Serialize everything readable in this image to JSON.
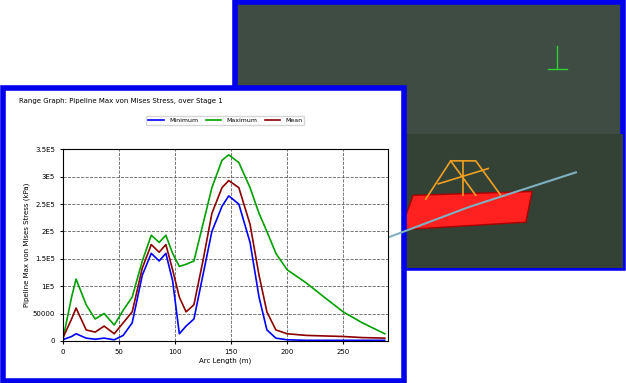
{
  "chart_data": {
    "type": "line",
    "title": "Range Graph: Pipeline Max von Mises Stress, over Stage 1",
    "x_label": "Arc Length (m)",
    "y_label": "Pipeline Max von Mises Stress (kPa)",
    "x": [
      0,
      8,
      12,
      21,
      29,
      37,
      46,
      54,
      62,
      71,
      79,
      86,
      92,
      98,
      104,
      110,
      117,
      125,
      133,
      142,
      148,
      157,
      167,
      175,
      182,
      190,
      200,
      217,
      233,
      250,
      267,
      287
    ],
    "series": [
      {
        "name": "Minimum",
        "color": "#0000ff",
        "values": [
          2000,
          8000,
          13000,
          5000,
          3000,
          5000,
          2000,
          10000,
          33000,
          120000,
          160000,
          146000,
          160000,
          110000,
          13000,
          27000,
          40000,
          120000,
          200000,
          246000,
          265000,
          250000,
          180000,
          80000,
          20000,
          5000,
          2000,
          1000,
          1000,
          1000,
          1000,
          1000
        ]
      },
      {
        "name": "Maximum",
        "color": "#00a000",
        "values": [
          0,
          80000,
          113000,
          66000,
          40000,
          50000,
          29000,
          56000,
          80000,
          146000,
          193000,
          180000,
          193000,
          160000,
          136000,
          140000,
          146000,
          213000,
          280000,
          330000,
          340000,
          326000,
          280000,
          233000,
          200000,
          160000,
          130000,
          106000,
          80000,
          53000,
          33000,
          13000
        ]
      },
      {
        "name": "Mean",
        "color": "#8b0000",
        "values": [
          4000,
          40000,
          60000,
          20000,
          16000,
          27000,
          13000,
          33000,
          53000,
          133000,
          176000,
          162000,
          176000,
          130000,
          80000,
          53000,
          66000,
          146000,
          233000,
          280000,
          293000,
          280000,
          213000,
          120000,
          53000,
          20000,
          13000,
          10000,
          9000,
          8000,
          6000,
          5000
        ]
      }
    ],
    "xlim": [
      0,
      290
    ],
    "xticks": [
      0,
      50,
      100,
      150,
      200,
      250
    ],
    "ylim": [
      0,
      350000
    ],
    "yticks": [
      0,
      50000,
      {
        "value": 100000,
        "label": "1E5"
      },
      {
        "value": 150000,
        "label": "1.5E5"
      },
      {
        "value": 200000,
        "label": "2E5"
      },
      {
        "value": 250000,
        "label": "2.5E5"
      },
      {
        "value": 300000,
        "label": "3E5"
      },
      {
        "value": 350000,
        "label": "3.5E5"
      }
    ],
    "grid": true,
    "legend": "upper center"
  }
}
